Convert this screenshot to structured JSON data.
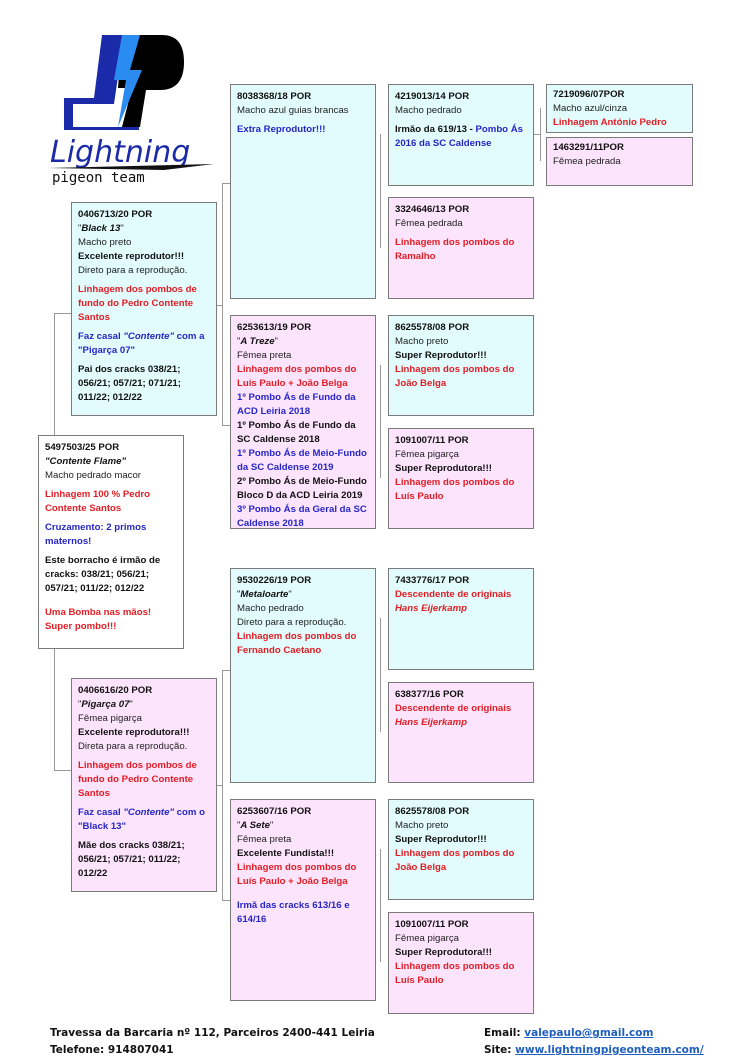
{
  "logo": {
    "brand": "Lightning",
    "tagline": "pigeon team",
    "colors": {
      "dark_blue": "#1a2aa8",
      "light_blue": "#2a8cf0",
      "black": "#000000"
    }
  },
  "colors": {
    "sire_bg": "#e2fbfc",
    "dam_bg": "#fde4fd",
    "red": "#e21d24",
    "blue": "#2626c8"
  },
  "boxes": [
    {
      "id": "subject",
      "bg": "white",
      "lines": [
        [
          {
            "t": "5497503/25 POR",
            "s": "b"
          }
        ],
        [
          {
            "t": "\"Contente Flame\"",
            "s": "bi"
          }
        ],
        [
          {
            "t": "Macho pedrado macor",
            "s": ""
          }
        ],
        [
          {
            "t": "Linhagem 100 % Pedro Contente Santos",
            "s": "r",
            "gap": 1
          }
        ],
        [
          {
            "t": "Cruzamento: 2 primos maternos!",
            "s": "u",
            "gap": 1
          }
        ],
        [
          {
            "t": "Este borracho é irmão de cracks: 038/21; 056/21; 057/21; 011/22; 012/22",
            "s": "b",
            "gap": 1
          }
        ],
        [
          {
            "t": "Uma Bomba nas mãos! Super pombo!!!",
            "s": "r",
            "gap": 2
          }
        ]
      ]
    },
    {
      "id": "sire",
      "bg": "cyan",
      "lines": [
        [
          {
            "t": "0406713/20 POR",
            "s": "b"
          }
        ],
        [
          {
            "t": "\"",
            "s": ""
          },
          {
            "t": "Black 13",
            "s": "bi"
          },
          {
            "t": "\"",
            "s": ""
          }
        ],
        [
          {
            "t": "Macho preto",
            "s": ""
          }
        ],
        [
          {
            "t": "Excelente reprodutor!!!",
            "s": "b"
          }
        ],
        [
          {
            "t": "Direto para a reprodução.",
            "s": ""
          }
        ],
        [
          {
            "t": "Linhagem dos pombos de fundo do Pedro Contente Santos",
            "s": "r",
            "gap": 1
          }
        ],
        [
          {
            "t": "Faz casal ",
            "s": "u",
            "gap": 1
          },
          {
            "t": "\"Contente\"",
            "s": "ui"
          },
          {
            "t": " com a \"Pigarça 07\"",
            "s": "u"
          }
        ],
        [
          {
            "t": "Pai dos cracks 038/21; 056/21; 057/21; 071/21; 011/22; 012/22",
            "s": "b",
            "gap": 1
          }
        ]
      ]
    },
    {
      "id": "dam",
      "bg": "pink",
      "lines": [
        [
          {
            "t": "0406616/20 POR",
            "s": "b"
          }
        ],
        [
          {
            "t": "\"",
            "s": ""
          },
          {
            "t": "Pigarça 07",
            "s": "bi"
          },
          {
            "t": "\"",
            "s": ""
          }
        ],
        [
          {
            "t": "Fêmea pigarça",
            "s": ""
          }
        ],
        [
          {
            "t": "Excelente reprodutora!!!",
            "s": "b"
          }
        ],
        [
          {
            "t": "Direta para a reprodução.",
            "s": ""
          }
        ],
        [
          {
            "t": "Linhagem dos pombos de fundo do Pedro Contente Santos",
            "s": "r",
            "gap": 1
          }
        ],
        [
          {
            "t": "Faz casal ",
            "s": "u",
            "gap": 1
          },
          {
            "t": "\"Contente\"",
            "s": "ui"
          },
          {
            "t": " com o \"Black 13\"",
            "s": "u"
          }
        ],
        [
          {
            "t": "Mãe dos cracks 038/21; 056/21; 057/21; 011/22; 012/22",
            "s": "b",
            "gap": 1
          }
        ]
      ]
    },
    {
      "id": "ss",
      "bg": "cyan",
      "lines": [
        [
          {
            "t": "8038368/18 POR",
            "s": "b"
          }
        ],
        [
          {
            "t": "Macho azul guias brancas",
            "s": ""
          }
        ],
        [
          {
            "t": "Extra Reprodutor!!!",
            "s": "u",
            "gap": 1
          }
        ]
      ]
    },
    {
      "id": "sd",
      "bg": "pink",
      "lines": [
        [
          {
            "t": "6253613/19 POR",
            "s": "b"
          }
        ],
        [
          {
            "t": "\"",
            "s": ""
          },
          {
            "t": "A Treze",
            "s": "bi"
          },
          {
            "t": "\"",
            "s": ""
          }
        ],
        [
          {
            "t": "Fêmea preta",
            "s": ""
          }
        ],
        [
          {
            "t": "Linhagem dos pombos do Luís Paulo + João Belga",
            "s": "r"
          }
        ],
        [
          {
            "t": "1º Pombo Ás de Fundo da ACD Leiria 2018",
            "s": "u"
          }
        ],
        [
          {
            "t": "1º Pombo Ás de Fundo da SC Caldense 2018",
            "s": "b"
          }
        ],
        [
          {
            "t": "1º Pombo Ás de Meio-Fundo da SC Caldense 2019",
            "s": "u"
          }
        ],
        [
          {
            "t": "2º Pombo Ás de Meio-Fundo Bloco D da ACD Leiria 2019",
            "s": "b"
          }
        ],
        [
          {
            "t": "3º Pombo Ás da Geral da SC Caldense 2018",
            "s": "u"
          }
        ]
      ]
    },
    {
      "id": "ds",
      "bg": "cyan",
      "lines": [
        [
          {
            "t": "9530226/19 POR",
            "s": "b"
          }
        ],
        [
          {
            "t": "\"",
            "s": ""
          },
          {
            "t": "Metaloarte",
            "s": "bi"
          },
          {
            "t": "\"",
            "s": ""
          }
        ],
        [
          {
            "t": "Macho pedrado",
            "s": ""
          }
        ],
        [
          {
            "t": "Direto para a reprodução.",
            "s": ""
          }
        ],
        [
          {
            "t": "Linhagem dos pombos do Fernando Caetano",
            "s": "r"
          }
        ]
      ]
    },
    {
      "id": "dd",
      "bg": "pink",
      "lines": [
        [
          {
            "t": "6253607/16 POR",
            "s": "b"
          }
        ],
        [
          {
            "t": "\"",
            "s": ""
          },
          {
            "t": "A Sete",
            "s": "bi"
          },
          {
            "t": "\"",
            "s": ""
          }
        ],
        [
          {
            "t": "Fêmea preta",
            "s": ""
          }
        ],
        [
          {
            "t": "Excelente Fundista!!!",
            "s": "b"
          }
        ],
        [
          {
            "t": "Linhagem dos pombos do Luís Paulo + João Belga",
            "s": "r"
          }
        ],
        [
          {
            "t": "Irmã das cracks 613/16 e 614/16",
            "s": "u",
            "gap": 2
          }
        ]
      ]
    },
    {
      "id": "sss",
      "bg": "cyan",
      "lines": [
        [
          {
            "t": "4219013/14 POR",
            "s": "b"
          }
        ],
        [
          {
            "t": "Macho pedrado",
            "s": ""
          }
        ],
        [
          {
            "t": "Irmão da 619/13 - ",
            "s": "b",
            "gap": 1
          },
          {
            "t": "Pombo Ás 2016 da SC Caldense",
            "s": "u"
          }
        ]
      ]
    },
    {
      "id": "ssd",
      "bg": "pink",
      "lines": [
        [
          {
            "t": "3324646/13 POR",
            "s": "b"
          }
        ],
        [
          {
            "t": "Fêmea pedrada",
            "s": ""
          }
        ],
        [
          {
            "t": "Linhagem dos pombos do Ramalho",
            "s": "r",
            "gap": 1
          }
        ]
      ]
    },
    {
      "id": "sds",
      "bg": "cyan",
      "lines": [
        [
          {
            "t": "8625578/08 POR",
            "s": "b"
          }
        ],
        [
          {
            "t": "Macho preto",
            "s": ""
          }
        ],
        [
          {
            "t": "Super Reprodutor!!!",
            "s": "b"
          }
        ],
        [
          {
            "t": "Linhagem dos pombos do João Belga",
            "s": "r"
          }
        ]
      ]
    },
    {
      "id": "sdd",
      "bg": "pink",
      "lines": [
        [
          {
            "t": "1091007/11 POR",
            "s": "b"
          }
        ],
        [
          {
            "t": "Fêmea pigarça",
            "s": ""
          }
        ],
        [
          {
            "t": "Super Reprodutora!!!",
            "s": "b"
          }
        ],
        [
          {
            "t": "Linhagem dos pombos do Luís Paulo",
            "s": "r"
          }
        ]
      ]
    },
    {
      "id": "dss",
      "bg": "cyan",
      "lines": [
        [
          {
            "t": "7433776/17 POR",
            "s": "b"
          }
        ],
        [
          {
            "t": "Descendente de originais ",
            "s": "r"
          },
          {
            "t": "Hans Eijerkamp",
            "s": "ri"
          }
        ]
      ]
    },
    {
      "id": "dsd",
      "bg": "pink",
      "lines": [
        [
          {
            "t": "638377/16 POR",
            "s": "b"
          }
        ],
        [
          {
            "t": "Descendente de originais ",
            "s": "r"
          },
          {
            "t": "Hans Eijerkamp",
            "s": "ri"
          }
        ]
      ]
    },
    {
      "id": "dds",
      "bg": "cyan",
      "lines": [
        [
          {
            "t": "8625578/08 POR",
            "s": "b"
          }
        ],
        [
          {
            "t": "Macho preto",
            "s": ""
          }
        ],
        [
          {
            "t": "Super Reprodutor!!!",
            "s": "b"
          }
        ],
        [
          {
            "t": "Linhagem dos pombos do João Belga",
            "s": "r"
          }
        ]
      ]
    },
    {
      "id": "ddd",
      "bg": "pink",
      "lines": [
        [
          {
            "t": "1091007/11 POR",
            "s": "b"
          }
        ],
        [
          {
            "t": "Fêmea pigarça",
            "s": ""
          }
        ],
        [
          {
            "t": "Super Reprodutora!!!",
            "s": "b"
          }
        ],
        [
          {
            "t": "Linhagem dos pombos do Luís Paulo",
            "s": "r"
          }
        ]
      ]
    },
    {
      "id": "ssss",
      "bg": "cyan",
      "lines": [
        [
          {
            "t": "7219096/07POR",
            "s": "b"
          }
        ],
        [
          {
            "t": "Macho azul/cinza",
            "s": ""
          }
        ],
        [
          {
            "t": "Linhagem António Pedro",
            "s": "r"
          }
        ]
      ]
    },
    {
      "id": "sssd",
      "bg": "pink",
      "lines": [
        [
          {
            "t": "1463291/11POR",
            "s": "b"
          }
        ],
        [
          {
            "t": "Fêmea pedrada",
            "s": ""
          }
        ]
      ]
    }
  ],
  "footer": {
    "address": "Travessa da Barcaria nº 112, Parceiros 2400-441 Leiria",
    "phone_label": "Telefone: 914807041",
    "email_label": "Email: ",
    "email": "valepaulo@gmail.com",
    "site_label": "Site: ",
    "site": "www.lightningpigeonteam.com/"
  }
}
